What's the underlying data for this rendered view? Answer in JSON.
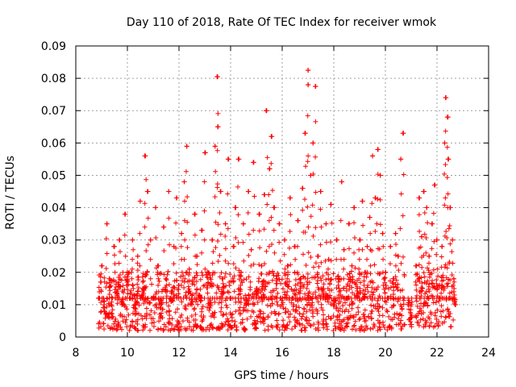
{
  "chart_data": {
    "type": "scatter",
    "title": "Day 110 of 2018, Rate Of TEC Index for receiver wmok",
    "xlabel": "GPS time / hours",
    "ylabel": "ROTI / TECUs",
    "xlim": [
      8,
      24
    ],
    "ylim": [
      0,
      0.09
    ],
    "x_ticks": [
      8,
      10,
      12,
      14,
      16,
      18,
      20,
      22,
      24
    ],
    "x_tick_labels": [
      "8",
      "10",
      "12",
      "14",
      "16",
      "18",
      "20",
      "22",
      "24"
    ],
    "y_ticks": [
      0,
      0.01,
      0.02,
      0.03,
      0.04,
      0.05,
      0.06,
      0.07,
      0.08,
      0.09
    ],
    "y_tick_labels": [
      "0",
      "0.01",
      "0.02",
      "0.03",
      "0.04",
      "0.05",
      "0.06",
      "0.07",
      "0.08",
      "0.09"
    ],
    "grid": true,
    "marker": "plus",
    "series": [
      {
        "name": "ROTI",
        "color": "#ff0000",
        "points": [
          [
            8.9,
            0.012
          ],
          [
            9.0,
            0.022
          ],
          [
            9.1,
            0.008
          ],
          [
            9.2,
            0.035
          ],
          [
            9.3,
            0.018
          ],
          [
            9.4,
            0.006
          ],
          [
            9.5,
            0.028
          ],
          [
            9.6,
            0.014
          ],
          [
            9.7,
            0.03
          ],
          [
            9.8,
            0.01
          ],
          [
            9.9,
            0.038
          ],
          [
            10.0,
            0.02
          ],
          [
            10.1,
            0.012
          ],
          [
            10.2,
            0.03
          ],
          [
            10.3,
            0.007
          ],
          [
            10.4,
            0.025
          ],
          [
            10.5,
            0.042
          ],
          [
            10.6,
            0.015
          ],
          [
            10.7,
            0.056
          ],
          [
            10.8,
            0.045
          ],
          [
            10.9,
            0.03
          ],
          [
            11.0,
            0.012
          ],
          [
            11.1,
            0.04
          ],
          [
            11.2,
            0.022
          ],
          [
            11.3,
            0.009
          ],
          [
            11.4,
            0.034
          ],
          [
            11.5,
            0.018
          ],
          [
            11.6,
            0.045
          ],
          [
            11.7,
            0.011
          ],
          [
            11.8,
            0.028
          ],
          [
            11.9,
            0.043
          ],
          [
            12.0,
            0.016
          ],
          [
            12.1,
            0.032
          ],
          [
            12.2,
            0.048
          ],
          [
            12.3,
            0.059
          ],
          [
            12.4,
            0.021
          ],
          [
            12.5,
            0.01
          ],
          [
            12.6,
            0.038
          ],
          [
            12.7,
            0.025
          ],
          [
            12.8,
            0.013
          ],
          [
            12.9,
            0.033
          ],
          [
            13.0,
            0.057
          ],
          [
            13.1,
            0.02
          ],
          [
            13.2,
            0.009
          ],
          [
            13.3,
            0.03
          ],
          [
            13.4,
            0.059
          ],
          [
            13.5,
            0.0805
          ],
          [
            13.5,
            0.065
          ],
          [
            13.6,
            0.045
          ],
          [
            13.7,
            0.018
          ],
          [
            13.8,
            0.035
          ],
          [
            13.9,
            0.055
          ],
          [
            14.0,
            0.012
          ],
          [
            14.1,
            0.028
          ],
          [
            14.2,
            0.04
          ],
          [
            14.3,
            0.055
          ],
          [
            14.4,
            0.02
          ],
          [
            14.5,
            0.035
          ],
          [
            14.6,
            0.01
          ],
          [
            14.7,
            0.045
          ],
          [
            14.8,
            0.027
          ],
          [
            14.9,
            0.054
          ],
          [
            15.0,
            0.015
          ],
          [
            15.1,
            0.038
          ],
          [
            15.2,
            0.022
          ],
          [
            15.3,
            0.044
          ],
          [
            15.4,
            0.07
          ],
          [
            15.5,
            0.052
          ],
          [
            15.6,
            0.062
          ],
          [
            15.7,
            0.04
          ],
          [
            15.8,
            0.018
          ],
          [
            15.9,
            0.035
          ],
          [
            16.0,
            0.01
          ],
          [
            16.1,
            0.03
          ],
          [
            16.2,
            0.022
          ],
          [
            16.3,
            0.043
          ],
          [
            16.4,
            0.012
          ],
          [
            16.5,
            0.028
          ],
          [
            16.6,
            0.036
          ],
          [
            16.7,
            0.018
          ],
          [
            16.8,
            0.046
          ],
          [
            16.9,
            0.063
          ],
          [
            17.0,
            0.0825
          ],
          [
            17.0,
            0.078
          ],
          [
            17.1,
            0.05
          ],
          [
            17.2,
            0.06
          ],
          [
            17.3,
            0.0775
          ],
          [
            17.4,
            0.025
          ],
          [
            17.5,
            0.045
          ],
          [
            17.6,
            0.015
          ],
          [
            17.7,
            0.035
          ],
          [
            17.8,
            0.024
          ],
          [
            17.9,
            0.041
          ],
          [
            18.0,
            0.01
          ],
          [
            18.1,
            0.03
          ],
          [
            18.2,
            0.018
          ],
          [
            18.3,
            0.048
          ],
          [
            18.4,
            0.027
          ],
          [
            18.5,
            0.012
          ],
          [
            18.6,
            0.035
          ],
          [
            18.7,
            0.022
          ],
          [
            18.8,
            0.04
          ],
          [
            18.9,
            0.015
          ],
          [
            19.0,
            0.03
          ],
          [
            19.1,
            0.042
          ],
          [
            19.2,
            0.02
          ],
          [
            19.3,
            0.028
          ],
          [
            19.4,
            0.037
          ],
          [
            19.5,
            0.056
          ],
          [
            19.6,
            0.043
          ],
          [
            19.7,
            0.058
          ],
          [
            19.8,
            0.05
          ],
          [
            19.9,
            0.032
          ],
          [
            20.0,
            0.02
          ],
          [
            20.1,
            0.012
          ],
          [
            20.2,
            0.028
          ],
          [
            20.3,
            0.018
          ],
          [
            20.4,
            0.032
          ],
          [
            20.5,
            0.025
          ],
          [
            20.6,
            0.055
          ],
          [
            20.7,
            0.063
          ],
          [
            20.9,
            0.01
          ],
          [
            21.0,
            0.006
          ],
          [
            21.2,
            0.022
          ],
          [
            21.3,
            0.043
          ],
          [
            21.4,
            0.031
          ],
          [
            21.5,
            0.045
          ],
          [
            21.6,
            0.04
          ],
          [
            21.7,
            0.025
          ],
          [
            21.8,
            0.035
          ],
          [
            21.9,
            0.047
          ],
          [
            22.0,
            0.03
          ],
          [
            22.1,
            0.012
          ],
          [
            22.2,
            0.028
          ],
          [
            22.3,
            0.06
          ],
          [
            22.35,
            0.074
          ],
          [
            22.4,
            0.068
          ],
          [
            22.45,
            0.055
          ],
          [
            22.5,
            0.04
          ],
          [
            22.6,
            0.03
          ],
          [
            22.65,
            0.018
          ],
          [
            22.7,
            0.01
          ]
        ],
        "dense_bands": [
          {
            "x": [
              8.85,
              20.75
            ],
            "y": [
              0.002,
              0.02
            ]
          },
          {
            "x": [
              20.9,
              21.05
            ],
            "y": [
              0.003,
              0.012
            ]
          },
          {
            "x": [
              21.15,
              22.65
            ],
            "y": [
              0.003,
              0.02
            ]
          }
        ]
      }
    ]
  }
}
